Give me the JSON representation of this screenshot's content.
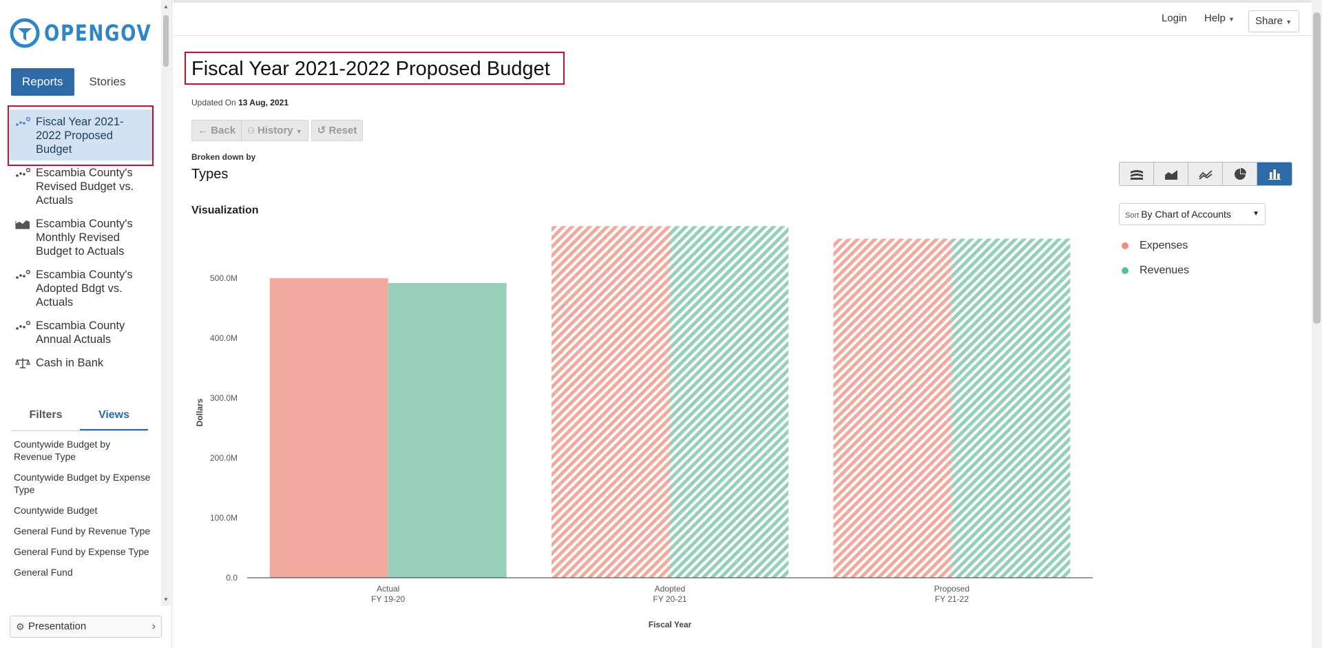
{
  "brand": {
    "name": "OPENGOV"
  },
  "sidebar": {
    "tabs": {
      "reports": "Reports",
      "stories": "Stories"
    },
    "reports": [
      {
        "label": "Fiscal Year 2021-2022 Proposed Budget",
        "icon": "dot-chart-icon",
        "active": true
      },
      {
        "label": "Escambia County's Revised Budget vs. Actuals",
        "icon": "dot-chart-icon"
      },
      {
        "label": "Escambia County's Monthly Revised Budget to Actuals",
        "icon": "area-chart-icon"
      },
      {
        "label": "Escambia County's Adopted Bdgt vs. Actuals",
        "icon": "dot-chart-icon"
      },
      {
        "label": "Escambia County Annual Actuals",
        "icon": "dot-chart-icon"
      },
      {
        "label": "Cash in Bank",
        "icon": "scale-icon"
      }
    ],
    "filter_tabs": {
      "filters": "Filters",
      "views": "Views"
    },
    "views": [
      "Countywide Budget by Revenue Type",
      "Countywide Budget by Expense Type",
      "Countywide Budget",
      "General Fund by Revenue Type",
      "General Fund by Expense Type",
      "General Fund"
    ],
    "presentation": "Presentation"
  },
  "topbar": {
    "login": "Login",
    "help": "Help",
    "share": "Share"
  },
  "page": {
    "title": "Fiscal Year 2021-2022 Proposed Budget",
    "updated_prefix": "Updated On",
    "updated_date": "13 Aug, 2021",
    "toolbar": {
      "back": "Back",
      "history": "History",
      "reset": "Reset"
    },
    "broken_down_label": "Broken down by",
    "broken_down_value": "Types",
    "visualization_label": "Visualization",
    "sort_prefix": "Sort",
    "sort_value": "By Chart of Accounts",
    "chart_type_icons": [
      "stacked-area-icon",
      "area-icon",
      "line-icon",
      "pie-icon",
      "bar-icon"
    ]
  },
  "colors": {
    "expenses": "#f0aa9e",
    "revenues": "#96cfba",
    "accent": "#2e69a8",
    "highlight": "#c8102e"
  },
  "chart_data": {
    "type": "bar",
    "categories": [
      "Actual\nFY 19-20",
      "Adopted\nFY 20-21",
      "Proposed\nFY 21-22"
    ],
    "series": [
      {
        "name": "Expenses",
        "values": [
          500000000,
          587000000,
          566000000
        ],
        "projected": [
          false,
          true,
          true
        ]
      },
      {
        "name": "Revenues",
        "values": [
          492000000,
          587000000,
          566000000
        ],
        "projected": [
          false,
          true,
          true
        ]
      }
    ],
    "yticks": [
      0,
      100000000,
      200000000,
      300000000,
      400000000,
      500000000
    ],
    "ytick_labels": [
      "0.0",
      "100.0M",
      "200.0M",
      "300.0M",
      "400.0M",
      "500.0M"
    ],
    "ylim": [
      0,
      590000000
    ],
    "ylabel": "Dollars",
    "xlabel": "Fiscal Year",
    "legend": "right"
  }
}
